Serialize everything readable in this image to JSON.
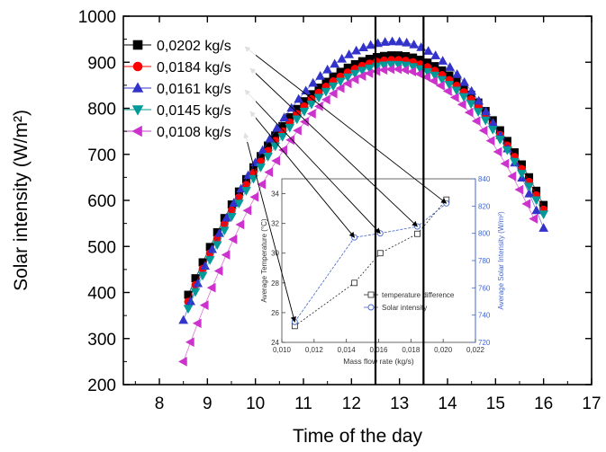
{
  "chart_data": [
    {
      "type": "scatter",
      "xlabel": "Time of the day",
      "ylabel": "Solar intensity (W/m²)",
      "xlim": [
        7.25,
        17
      ],
      "ylim": [
        200,
        1000
      ],
      "xticks": [
        "8",
        "9",
        "10",
        "11",
        "12",
        "13",
        "14",
        "15",
        "16",
        "17"
      ],
      "yticks": [
        "200",
        "300",
        "400",
        "500",
        "600",
        "700",
        "800",
        "900",
        "1000"
      ],
      "vertical_lines": [
        12.5,
        13.5
      ],
      "legend_placement": "top-left",
      "series": [
        {
          "name": "0,0202 kg/s",
          "color": "#000000",
          "marker": "square",
          "peak": 915,
          "start": 395,
          "end": 590,
          "x_start": 8.6,
          "x_end": 16.0
        },
        {
          "name": "0,0184 kg/s",
          "color": "#ff0000",
          "marker": "circle",
          "peak": 905,
          "start": 380,
          "end": 580,
          "x_start": 8.6,
          "x_end": 16.0
        },
        {
          "name": "0,0161 kg/s",
          "color": "#3333cc",
          "marker": "triangle-up",
          "peak": 945,
          "start": 340,
          "end": 540,
          "x_start": 8.5,
          "x_end": 16.0
        },
        {
          "name": "0,0145 kg/s",
          "color": "#009999",
          "marker": "triangle-down",
          "peak": 895,
          "start": 365,
          "end": 570,
          "x_start": 8.6,
          "x_end": 16.0
        },
        {
          "name": "0,0108 kg/s",
          "color": "#cc33cc",
          "marker": "triangle-left",
          "peak": 885,
          "start": 250,
          "end": 560,
          "x_start": 8.5,
          "x_end": 15.8
        }
      ]
    },
    {
      "type": "line",
      "xlabel": "Mass flow rate (kg/s)",
      "ylabel": "Average Temperature (°C)",
      "y2label": "Average Solar Intensity (W/m²)",
      "xlim": [
        0.01,
        0.022
      ],
      "ylim": [
        24,
        35
      ],
      "y2lim": [
        720,
        840
      ],
      "xticks": [
        "0,010",
        "0,012",
        "0,014",
        "0,016",
        "0,018",
        "0,020",
        "0,022"
      ],
      "yticks": [
        "24",
        "26",
        "28",
        "30",
        "32",
        "34"
      ],
      "y2ticks": [
        "720",
        "740",
        "760",
        "780",
        "800",
        "820",
        "840"
      ],
      "x": [
        0.0108,
        0.0145,
        0.0161,
        0.0184,
        0.0202
      ],
      "series": [
        {
          "name": "temperature difference",
          "axis": "left",
          "color": "#222222",
          "values": [
            25.1,
            28.0,
            30.0,
            31.3,
            33.6
          ]
        },
        {
          "name": "Solar intensity",
          "axis": "right",
          "color": "#4466cc",
          "values": [
            735,
            797,
            800,
            805,
            822
          ]
        }
      ]
    }
  ]
}
